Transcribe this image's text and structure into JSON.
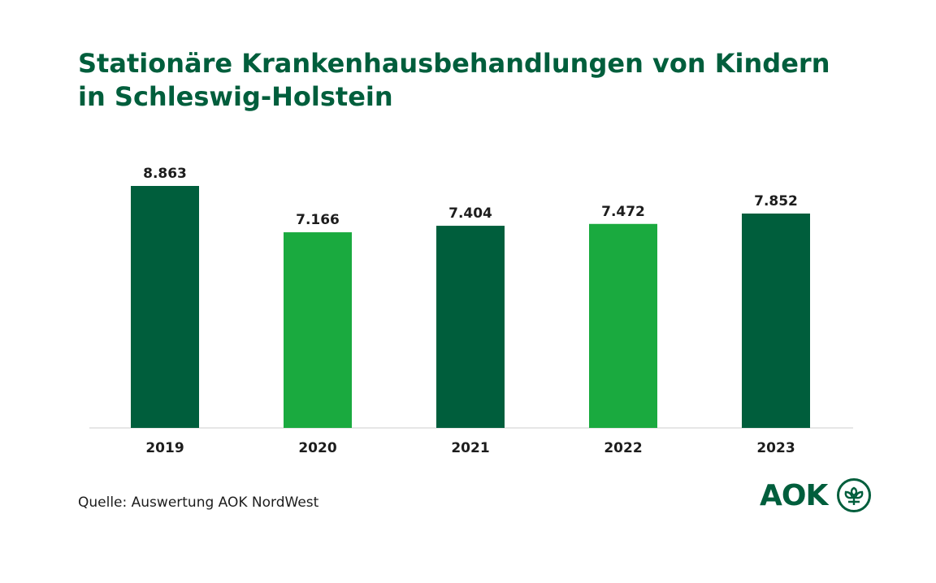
{
  "title_lines": [
    "Stationäre Krankenhausbehandlungen von Kindern",
    "in Schleswig-Holstein"
  ],
  "source": "Quelle: Auswertung AOK NordWest",
  "logo_text": "AOK",
  "colors": {
    "title": "#005e3c",
    "dark_bar": "#005e3c",
    "light_bar": "#1aaa3f",
    "baseline": "#cccccc",
    "text": "#1d1d1d"
  },
  "chart_data": {
    "type": "bar",
    "categories": [
      "2019",
      "2020",
      "2021",
      "2022",
      "2023"
    ],
    "values": [
      8863,
      7166,
      7404,
      7472,
      7852
    ],
    "value_labels": [
      "8.863",
      "7.166",
      "7.404",
      "7.472",
      "7.852"
    ],
    "bar_colors": [
      "#005e3c",
      "#1aaa3f",
      "#005e3c",
      "#1aaa3f",
      "#005e3c"
    ],
    "ylim": [
      0,
      8863
    ],
    "grid": false,
    "legend": "none"
  }
}
